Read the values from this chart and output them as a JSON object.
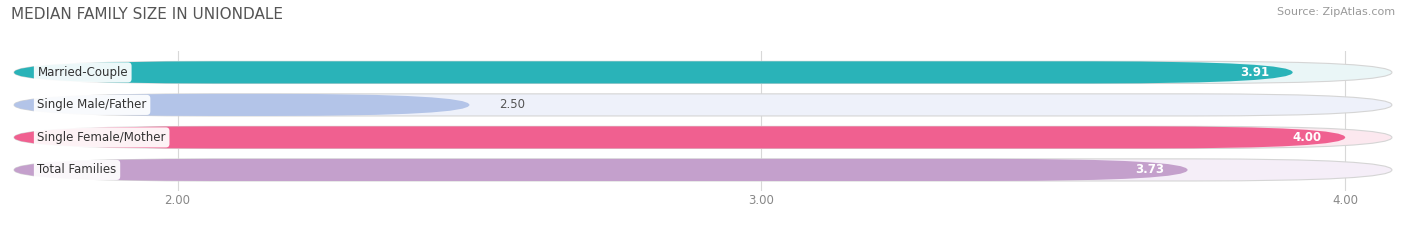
{
  "title": "MEDIAN FAMILY SIZE IN UNIONDALE",
  "source": "Source: ZipAtlas.com",
  "categories": [
    "Married-Couple",
    "Single Male/Father",
    "Single Female/Mother",
    "Total Families"
  ],
  "values": [
    3.91,
    2.5,
    4.0,
    3.73
  ],
  "bar_colors": [
    "#2ab3b8",
    "#b3c4e8",
    "#f06090",
    "#c4a0cc"
  ],
  "bar_bg_colors": [
    "#eaf6f7",
    "#eef1fa",
    "#fce8ef",
    "#f5eef8"
  ],
  "xlim_min": 1.72,
  "xlim_max": 4.08,
  "xticks": [
    2.0,
    3.0,
    4.0
  ],
  "xtick_labels": [
    "2.00",
    "3.00",
    "4.00"
  ],
  "title_fontsize": 11,
  "source_fontsize": 8,
  "label_fontsize": 8.5,
  "value_fontsize": 8.5,
  "tick_fontsize": 8.5,
  "bar_height": 0.68,
  "bar_gap": 0.32,
  "figsize": [
    14.06,
    2.33
  ],
  "dpi": 100
}
